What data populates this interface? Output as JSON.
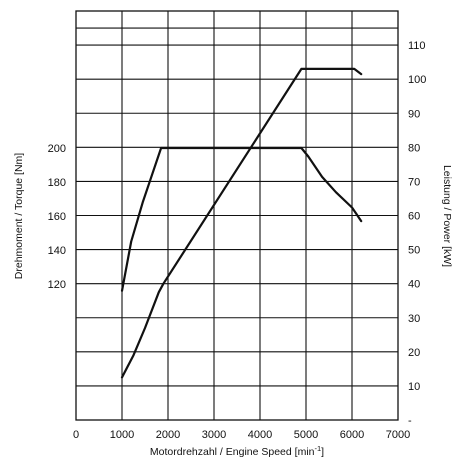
{
  "chart_data": {
    "type": "line",
    "xlabel": "Motordrehzahl / Engine Speed [min",
    "xlabel_unit_sup": "-1",
    "xlabel_close": "]",
    "ylabel_left": "Drehmoment / Torque [Nm]",
    "ylabel_right": "Leistung / Power [kW]",
    "xlim": [
      0,
      7000
    ],
    "x_ticks": [
      0,
      1000,
      2000,
      3000,
      4000,
      5000,
      6000,
      7000
    ],
    "left_axis_labelled_ticks": [
      120,
      140,
      160,
      180,
      200
    ],
    "left_axis_scale": {
      "value_a": 120,
      "value_b": 200
    },
    "right_ylim": [
      0,
      120
    ],
    "right_ticks": [
      {
        "value": 0,
        "label": "-"
      },
      {
        "value": 10,
        "label": "10"
      },
      {
        "value": 20,
        "label": "20"
      },
      {
        "value": 30,
        "label": "30"
      },
      {
        "value": 40,
        "label": "40"
      },
      {
        "value": 50,
        "label": "50"
      },
      {
        "value": 60,
        "label": "60"
      },
      {
        "value": 70,
        "label": "70"
      },
      {
        "value": 80,
        "label": "80"
      },
      {
        "value": 90,
        "label": "90"
      },
      {
        "value": 100,
        "label": "100"
      },
      {
        "value": 110,
        "label": "110"
      }
    ],
    "grid": true,
    "series": [
      {
        "axis": "left",
        "x": [
          1000,
          1200,
          1450,
          1650,
          1850,
          4900,
          5050,
          5350,
          5650,
          6000,
          6100,
          6200
        ],
        "y": [
          116,
          145,
          168,
          184,
          200,
          200,
          195,
          183,
          174,
          165,
          161,
          157
        ]
      },
      {
        "axis": "right",
        "x": [
          1000,
          1250,
          1500,
          1800,
          1900,
          4900,
          5100,
          5600,
          6050,
          6150,
          6200
        ],
        "y": [
          12.5,
          19,
          27,
          37.5,
          40,
          103,
          103,
          103,
          103,
          102,
          101.5
        ]
      }
    ]
  }
}
